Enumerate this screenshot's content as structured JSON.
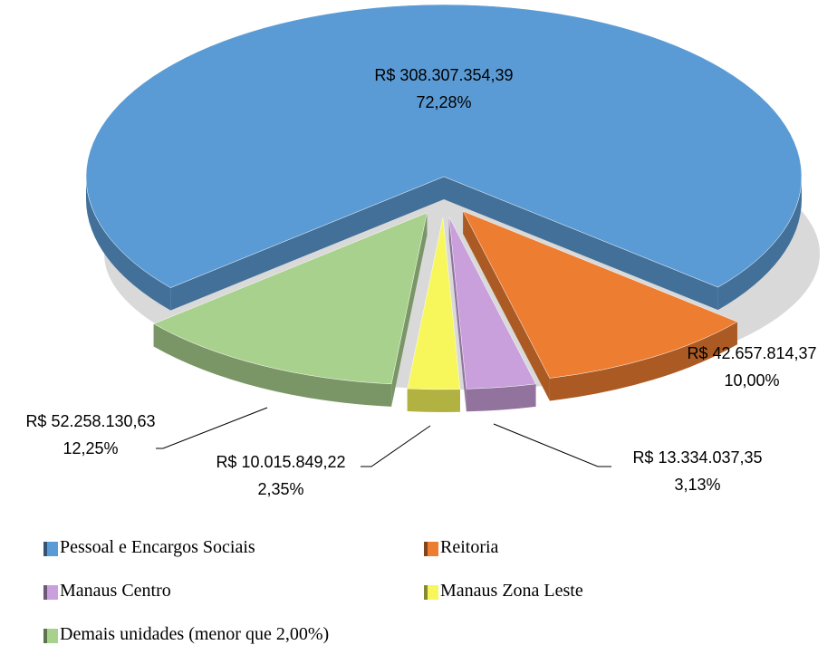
{
  "chart_data": {
    "type": "pie3d",
    "categories": [
      "Pessoal e Encargos Sociais",
      "Reitoria",
      "Manaus Centro",
      "Manaus Zona Leste",
      "Demais unidades (menor que 2,00%)"
    ],
    "values": [
      308307354.39,
      42657814.37,
      13334037.35,
      10015849.22,
      52258130.63
    ],
    "value_labels": [
      "R$ 308.307.354,39",
      "R$ 42.657.814,37",
      "R$ 13.334.037,35",
      "R$ 10.015.849,22",
      "R$ 52.258.130,63"
    ],
    "percentages": [
      72.28,
      10.0,
      3.13,
      2.35,
      12.25
    ],
    "percentage_labels": [
      "72,28%",
      "10,00%",
      "3,13%",
      "2,35%",
      "12,25%"
    ],
    "colors": [
      "#5b9bd5",
      "#ed7d31",
      "#c9a0dc",
      "#f7f75c",
      "#a9d18e"
    ]
  }
}
